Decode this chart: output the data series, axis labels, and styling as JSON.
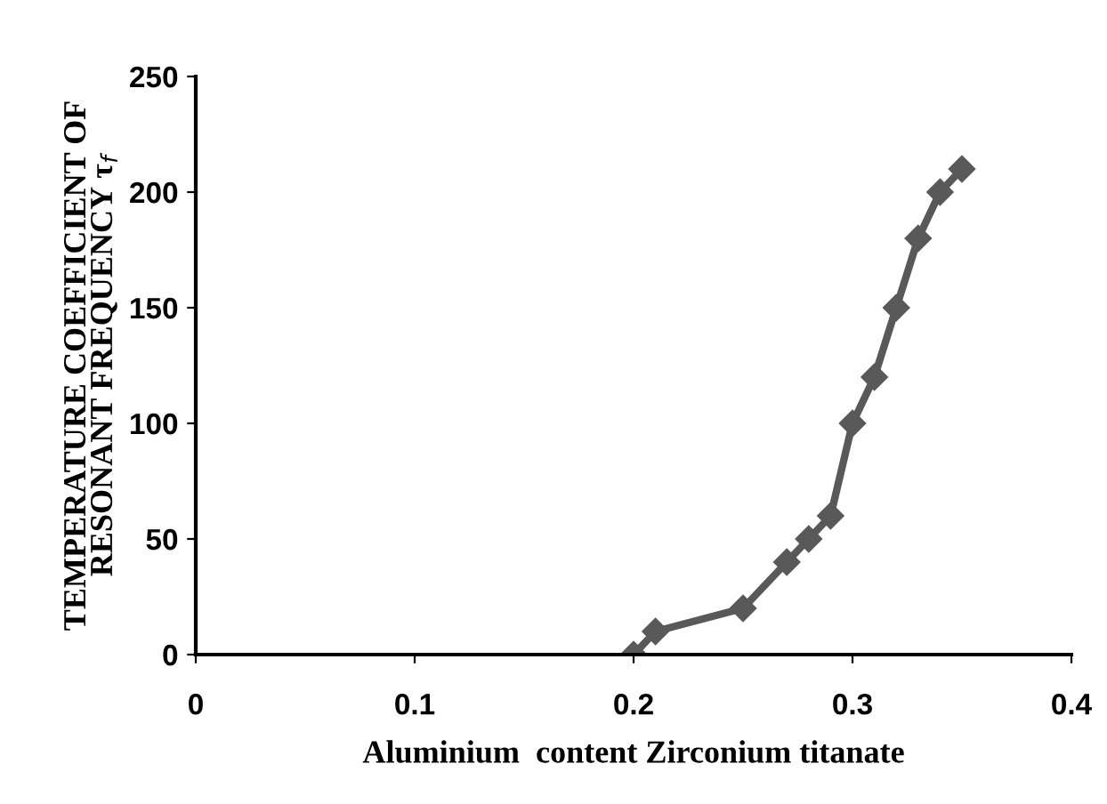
{
  "chart_data": {
    "type": "line",
    "xlabel": "Aluminium  content Zirconium titanate",
    "ylabel": "TEMPERATURE COEFFICIENT OF\nRESONANT FREQUENCY τ$_{f}$",
    "x": [
      0.2,
      0.21,
      0.25,
      0.27,
      0.28,
      0.29,
      0.3,
      0.31,
      0.32,
      0.33,
      0.34,
      0.35
    ],
    "series": [
      {
        "color": "#595959",
        "values": [
          0,
          10,
          20,
          40,
          50,
          60,
          100,
          120,
          150,
          180,
          200,
          210
        ]
      }
    ],
    "xlim": [
      0,
      0.4
    ],
    "xticks": [
      0,
      0.1,
      0.2,
      0.3,
      0.4
    ],
    "ylim": [
      0,
      250
    ],
    "yticks": [
      0,
      50,
      100,
      150,
      200,
      250
    ],
    "grid": false,
    "legend": false,
    "marker": "diamond",
    "line_style": "solid"
  }
}
